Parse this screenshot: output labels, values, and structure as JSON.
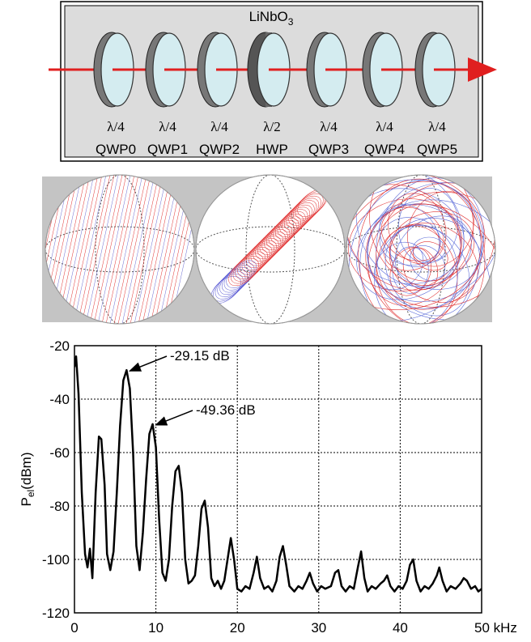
{
  "diagram": {
    "title": {
      "main": "LiNbO",
      "sub": "3"
    },
    "plates": [
      {
        "fraction": "λ/4",
        "name": "QWP0"
      },
      {
        "fraction": "λ/4",
        "name": "QWP1"
      },
      {
        "fraction": "λ/4",
        "name": "QWP2"
      },
      {
        "fraction": "λ/2",
        "name": "HWP"
      },
      {
        "fraction": "λ/4",
        "name": "QWP3"
      },
      {
        "fraction": "λ/4",
        "name": "QWP4"
      },
      {
        "fraction": "λ/4",
        "name": "QWP5"
      }
    ]
  },
  "chart_data": {
    "type": "line",
    "color": "#000000",
    "grid": true,
    "y_label": {
      "main": "P",
      "sub": "el",
      "unit": "(dBm)"
    },
    "xlim": [
      0,
      50
    ],
    "ylim": [
      -120,
      -20
    ],
    "xticks": [
      0,
      10,
      20,
      30,
      40,
      {
        "value": 50,
        "label": "50 kHz"
      }
    ],
    "yticks": [
      -120,
      -100,
      -80,
      -60,
      -40,
      -20
    ],
    "annotations": [
      {
        "text": "-29.15 dB",
        "x": 6.4,
        "y": -29.15
      },
      {
        "text": "-49.36 dB",
        "x": 9.6,
        "y": -49.36
      }
    ],
    "x": [
      0,
      0.2,
      0.5,
      0.9,
      1.3,
      1.6,
      1.9,
      2.2,
      2.6,
      3.0,
      3.3,
      3.7,
      4.0,
      4.4,
      4.8,
      5.2,
      5.6,
      6.0,
      6.4,
      6.8,
      7.2,
      7.6,
      8.0,
      8.4,
      8.8,
      9.2,
      9.6,
      10.0,
      10.4,
      10.8,
      11.2,
      11.6,
      12.0,
      12.4,
      12.8,
      13.2,
      13.6,
      14.0,
      14.4,
      14.8,
      15.2,
      15.6,
      16.0,
      16.4,
      16.8,
      17.2,
      17.6,
      18.0,
      18.4,
      18.8,
      19.2,
      19.6,
      20.0,
      20.5,
      21.0,
      21.5,
      22.0,
      22.4,
      22.8,
      23.3,
      23.8,
      24.3,
      24.8,
      25.2,
      25.6,
      26.0,
      26.4,
      27.0,
      27.5,
      28.0,
      28.5,
      28.9,
      29.3,
      29.8,
      30.3,
      30.8,
      31.5,
      32.0,
      32.4,
      32.8,
      33.3,
      33.8,
      34.3,
      34.8,
      35.2,
      35.6,
      36.0,
      36.5,
      37.0,
      37.6,
      38.0,
      38.4,
      38.8,
      39.3,
      39.8,
      40.3,
      40.8,
      41.2,
      41.6,
      42.0,
      42.5,
      43.0,
      43.5,
      44.0,
      44.5,
      44.8,
      45.2,
      45.7,
      46.2,
      46.8,
      47.4,
      47.8,
      48.2,
      48.7,
      49.2,
      49.6,
      50
    ],
    "values": [
      -28,
      -24,
      -38,
      -75,
      -98,
      -103,
      -96,
      -107,
      -75,
      -54,
      -55,
      -72,
      -98,
      -104,
      -97,
      -75,
      -50,
      -33,
      -29.15,
      -36,
      -60,
      -95,
      -104,
      -90,
      -70,
      -53,
      -49.36,
      -58,
      -85,
      -105,
      -108,
      -100,
      -80,
      -67,
      -65,
      -75,
      -100,
      -109,
      -108,
      -106,
      -95,
      -81,
      -78,
      -88,
      -107,
      -110,
      -108,
      -111,
      -108,
      -100,
      -92,
      -100,
      -111,
      -112,
      -110,
      -111,
      -105,
      -99,
      -107,
      -111,
      -110,
      -112,
      -108,
      -99,
      -95,
      -102,
      -110,
      -112,
      -110,
      -111,
      -108,
      -105,
      -109,
      -112,
      -110,
      -111,
      -110,
      -105,
      -104,
      -110,
      -112,
      -110,
      -111,
      -103,
      -97,
      -107,
      -112,
      -110,
      -111,
      -109,
      -108,
      -106,
      -110,
      -112,
      -110,
      -111,
      -108,
      -102,
      -100,
      -108,
      -112,
      -110,
      -111,
      -109,
      -106,
      -103,
      -108,
      -112,
      -110,
      -111,
      -109,
      -107,
      -108,
      -111,
      -110,
      -112,
      -111
    ]
  }
}
